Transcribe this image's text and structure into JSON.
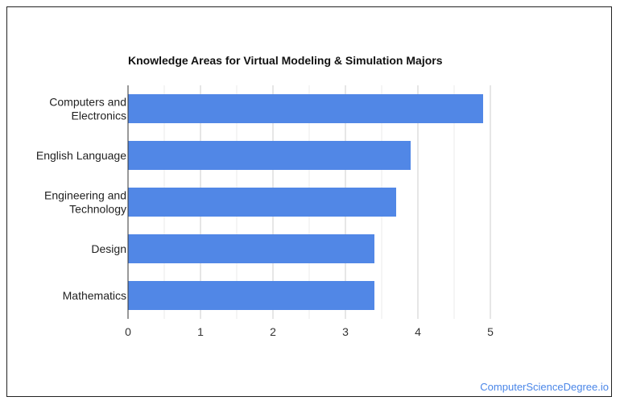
{
  "chart_data": {
    "type": "bar",
    "orientation": "horizontal",
    "title": "Knowledge Areas for Virtual Modeling & Simulation Majors",
    "categories": [
      [
        "Computers and",
        "Electronics"
      ],
      [
        "English Language"
      ],
      [
        "Engineering and",
        "Technology"
      ],
      [
        "Design"
      ],
      [
        "Mathematics"
      ]
    ],
    "values": [
      4.9,
      3.9,
      3.7,
      3.4,
      3.4
    ],
    "xlim": [
      0,
      5
    ],
    "xticks": [
      "0",
      "1",
      "2",
      "3",
      "4",
      "5"
    ],
    "grid": true,
    "bar_color": "#5187e6"
  },
  "watermark": "ComputerScienceDegree.io"
}
